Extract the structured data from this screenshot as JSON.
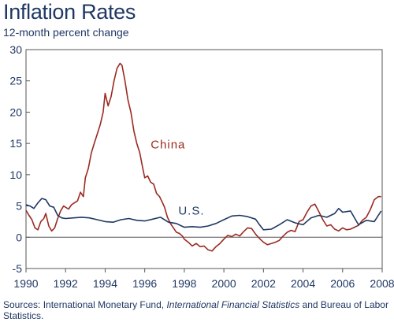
{
  "chart_data": {
    "type": "line",
    "title": "Inflation Rates",
    "subtitle": "12-month percent change",
    "xlabel": "",
    "ylabel": "",
    "xlim": [
      1990,
      2008
    ],
    "ylim": [
      -5,
      30
    ],
    "x_ticks": [
      "1990",
      "1992",
      "1994",
      "1996",
      "1998",
      "2000",
      "2002",
      "2004",
      "2006",
      "2008"
    ],
    "y_ticks": [
      "-5",
      "0",
      "5",
      "10",
      "15",
      "20",
      "25",
      "30"
    ],
    "grid": false,
    "series": [
      {
        "name": "China",
        "color": "#9b2a22",
        "x": [
          1990.0,
          1990.15,
          1990.3,
          1990.45,
          1990.6,
          1990.75,
          1990.9,
          1991.0,
          1991.15,
          1991.3,
          1991.45,
          1991.6,
          1991.75,
          1991.9,
          1992.0,
          1992.15,
          1992.3,
          1992.45,
          1992.6,
          1992.75,
          1992.9,
          1993.0,
          1993.15,
          1993.3,
          1993.45,
          1993.6,
          1993.75,
          1993.9,
          1994.0,
          1994.15,
          1994.3,
          1994.45,
          1994.6,
          1994.75,
          1994.85,
          1995.0,
          1995.15,
          1995.3,
          1995.45,
          1995.6,
          1995.75,
          1995.9,
          1996.0,
          1996.15,
          1996.3,
          1996.45,
          1996.6,
          1996.75,
          1996.9,
          1997.0,
          1997.15,
          1997.3,
          1997.45,
          1997.6,
          1997.75,
          1997.9,
          1998.0,
          1998.2,
          1998.4,
          1998.6,
          1998.8,
          1999.0,
          1999.2,
          1999.4,
          1999.6,
          1999.8,
          2000.0,
          2000.2,
          2000.4,
          2000.6,
          2000.8,
          2001.0,
          2001.2,
          2001.4,
          2001.6,
          2001.8,
          2002.0,
          2002.2,
          2002.4,
          2002.6,
          2002.8,
          2003.0,
          2003.2,
          2003.4,
          2003.6,
          2003.8,
          2004.0,
          2004.2,
          2004.4,
          2004.6,
          2004.8,
          2005.0,
          2005.2,
          2005.4,
          2005.6,
          2005.8,
          2006.0,
          2006.2,
          2006.4,
          2006.6,
          2006.8,
          2007.0,
          2007.2,
          2007.4,
          2007.6,
          2007.8,
          2007.95
        ],
        "values": [
          4.3,
          3.5,
          2.8,
          1.5,
          1.2,
          2.5,
          3.0,
          3.8,
          1.8,
          1.0,
          1.5,
          3.0,
          4.2,
          5.0,
          4.8,
          4.5,
          5.2,
          5.5,
          5.8,
          7.2,
          6.5,
          9.5,
          11.0,
          13.5,
          15.0,
          16.5,
          18.0,
          20.0,
          23.0,
          21.0,
          22.5,
          25.0,
          27.0,
          27.8,
          27.5,
          25.0,
          22.0,
          20.0,
          17.0,
          15.0,
          13.5,
          11.0,
          9.5,
          9.8,
          8.8,
          8.5,
          7.0,
          6.5,
          5.5,
          4.8,
          3.2,
          2.2,
          1.5,
          0.8,
          0.6,
          0.2,
          -0.3,
          -0.8,
          -1.4,
          -1.0,
          -1.5,
          -1.4,
          -2.0,
          -2.2,
          -1.5,
          -1.0,
          -0.3,
          0.3,
          0.1,
          0.5,
          0.2,
          0.9,
          1.5,
          1.4,
          0.5,
          -0.2,
          -0.8,
          -1.2,
          -1.0,
          -0.8,
          -0.5,
          0.2,
          0.8,
          1.1,
          0.9,
          2.5,
          2.8,
          4.0,
          5.0,
          5.3,
          4.1,
          2.8,
          1.8,
          2.0,
          1.3,
          1.0,
          1.5,
          1.2,
          1.3,
          1.6,
          1.9,
          2.7,
          3.2,
          4.4,
          6.0,
          6.5,
          6.5
        ]
      },
      {
        "name": "U.S.",
        "color": "#1f3864",
        "x": [
          1990.0,
          1990.2,
          1990.4,
          1990.6,
          1990.8,
          1991.0,
          1991.2,
          1991.4,
          1991.6,
          1991.8,
          1992.0,
          1992.4,
          1992.8,
          1993.2,
          1993.6,
          1994.0,
          1994.4,
          1994.8,
          1995.2,
          1995.6,
          1996.0,
          1996.4,
          1996.8,
          1997.2,
          1997.6,
          1998.0,
          1998.4,
          1998.8,
          1999.2,
          1999.6,
          2000.0,
          2000.4,
          2000.8,
          2001.2,
          2001.6,
          2001.8,
          2002.0,
          2002.4,
          2002.8,
          2003.2,
          2003.6,
          2004.0,
          2004.4,
          2004.8,
          2005.2,
          2005.6,
          2005.8,
          2006.0,
          2006.4,
          2006.8,
          2007.2,
          2007.6,
          2007.95
        ],
        "values": [
          5.2,
          5.0,
          4.6,
          5.5,
          6.2,
          6.0,
          5.0,
          4.8,
          3.5,
          3.1,
          3.0,
          3.1,
          3.2,
          3.1,
          2.8,
          2.5,
          2.4,
          2.8,
          3.0,
          2.7,
          2.6,
          2.9,
          3.2,
          2.4,
          2.2,
          1.6,
          1.7,
          1.6,
          1.8,
          2.2,
          2.8,
          3.4,
          3.5,
          3.3,
          2.9,
          2.0,
          1.2,
          1.3,
          2.0,
          2.8,
          2.3,
          2.0,
          3.1,
          3.5,
          3.2,
          3.8,
          4.6,
          4.0,
          4.2,
          2.0,
          2.7,
          2.5,
          4.2
        ]
      }
    ],
    "annotations": [
      "China",
      "U.S."
    ]
  },
  "source": {
    "prefix": "Sources: International Monetary Fund, ",
    "italic": "International Financial Statistics",
    "suffix": " and Bureau of Labor Statistics."
  }
}
